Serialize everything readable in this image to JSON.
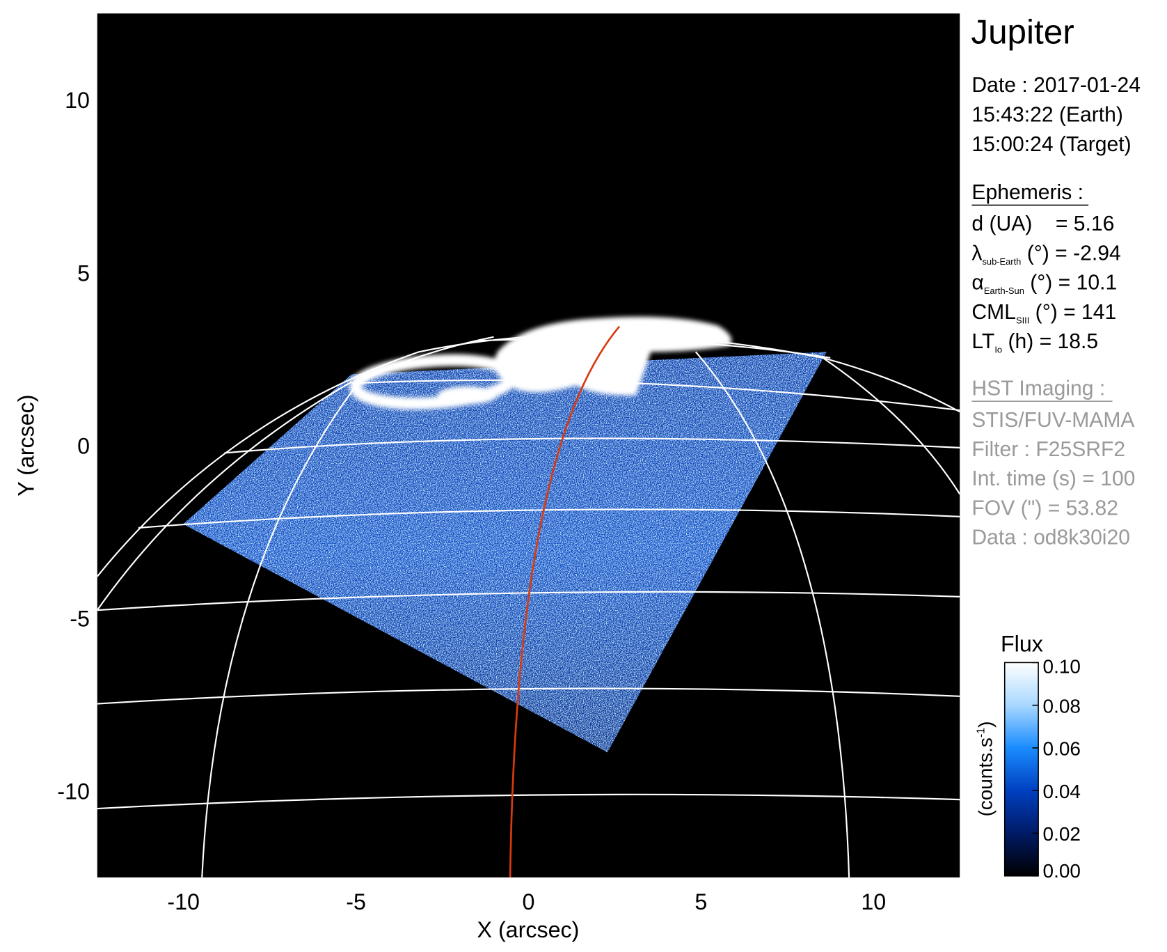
{
  "chart_data": {
    "type": "image",
    "xlabel": "X (arcsec)",
    "ylabel": "Y (arcsec)",
    "xlim": [
      -12.5,
      12.5
    ],
    "ylim": [
      -12.5,
      12.5
    ],
    "xticks": [
      -10,
      -5,
      0,
      5,
      10
    ],
    "yticks": [
      -10,
      -5,
      0,
      5,
      10
    ],
    "colorbar": {
      "title": "Flux",
      "label": [
        "(counts.s",
        "-1",
        ")"
      ],
      "lim": [
        0,
        0.1
      ],
      "colors": [
        "#000000",
        "#001a66",
        "#0040c0",
        "#1a8cff",
        "#a8d8ff",
        "#ffffff"
      ],
      "ticks": [
        {
          "value": 0,
          "label": "0.00"
        },
        {
          "value": 0.02,
          "label": "0.02"
        },
        {
          "value": 0.04,
          "label": "0.04"
        },
        {
          "value": 0.06,
          "label": "0.06"
        },
        {
          "value": 0.08,
          "label": "0.08"
        },
        {
          "value": 0.1,
          "label": "0.10"
        }
      ]
    }
  },
  "panel": {
    "title": "Jupiter",
    "date": [
      "Date : 2017-01-24",
      "15:43:22 (Earth)",
      "15:00:24 (Target)"
    ],
    "ephemeris": {
      "heading": "Ephemeris :",
      "rows": [
        {
          "symbol": "d (UA)",
          "sub": "",
          "text": "    = 5.16"
        },
        {
          "symbol": "λ",
          "sub": "sub-Earth",
          "text": " (°) = -2.94"
        },
        {
          "symbol": "α",
          "sub": "Earth-Sun",
          "text": " (°) = 10.1"
        },
        {
          "symbol": "CML",
          "sub": "SIII",
          "text": " (°) = 141"
        },
        {
          "symbol": "LT",
          "sub": "Io",
          "text": " (h) = 18.5"
        }
      ]
    },
    "instrument": {
      "heading": "HST Imaging :",
      "rows": [
        "STIS/FUV-MAMA",
        "Filter : F25SRF2",
        "Int. time (s) = 100",
        "FOV (\") = 53.82",
        "Data : od8k30i20"
      ]
    }
  }
}
